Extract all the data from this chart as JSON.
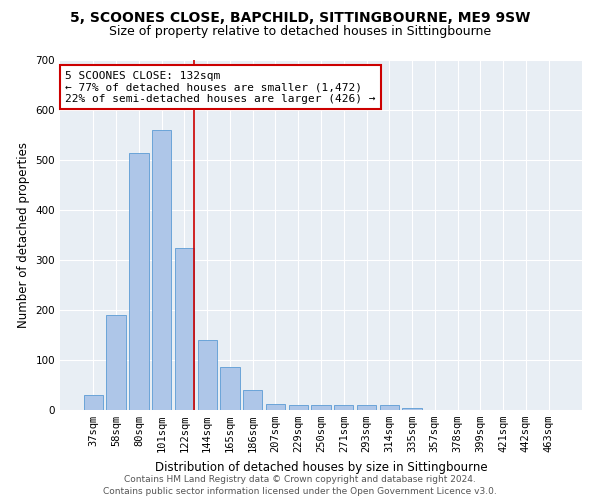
{
  "title1": "5, SCOONES CLOSE, BAPCHILD, SITTINGBOURNE, ME9 9SW",
  "title2": "Size of property relative to detached houses in Sittingbourne",
  "xlabel": "Distribution of detached houses by size in Sittingbourne",
  "ylabel": "Number of detached properties",
  "categories": [
    "37sqm",
    "58sqm",
    "80sqm",
    "101sqm",
    "122sqm",
    "144sqm",
    "165sqm",
    "186sqm",
    "207sqm",
    "229sqm",
    "250sqm",
    "271sqm",
    "293sqm",
    "314sqm",
    "335sqm",
    "357sqm",
    "378sqm",
    "399sqm",
    "421sqm",
    "442sqm",
    "463sqm"
  ],
  "values": [
    30,
    190,
    515,
    560,
    325,
    140,
    87,
    40,
    12,
    10,
    10,
    10,
    10,
    10,
    5,
    0,
    0,
    0,
    0,
    0,
    0
  ],
  "bar_color": "#aec6e8",
  "bar_edgecolor": "#5b9bd5",
  "annotation_text": "5 SCOONES CLOSE: 132sqm\n← 77% of detached houses are smaller (1,472)\n22% of semi-detached houses are larger (426) →",
  "annotation_box_color": "#ffffff",
  "annotation_box_edgecolor": "#cc0000",
  "ylim": [
    0,
    700
  ],
  "yticks": [
    0,
    100,
    200,
    300,
    400,
    500,
    600,
    700
  ],
  "vline_color": "#cc0000",
  "background_color": "#e8eef4",
  "grid_color": "#ffffff",
  "footer": "Contains HM Land Registry data © Crown copyright and database right 2024.\nContains public sector information licensed under the Open Government Licence v3.0.",
  "title1_fontsize": 10,
  "title2_fontsize": 9,
  "xlabel_fontsize": 8.5,
  "ylabel_fontsize": 8.5,
  "tick_fontsize": 7.5,
  "annotation_fontsize": 8,
  "footer_fontsize": 6.5
}
